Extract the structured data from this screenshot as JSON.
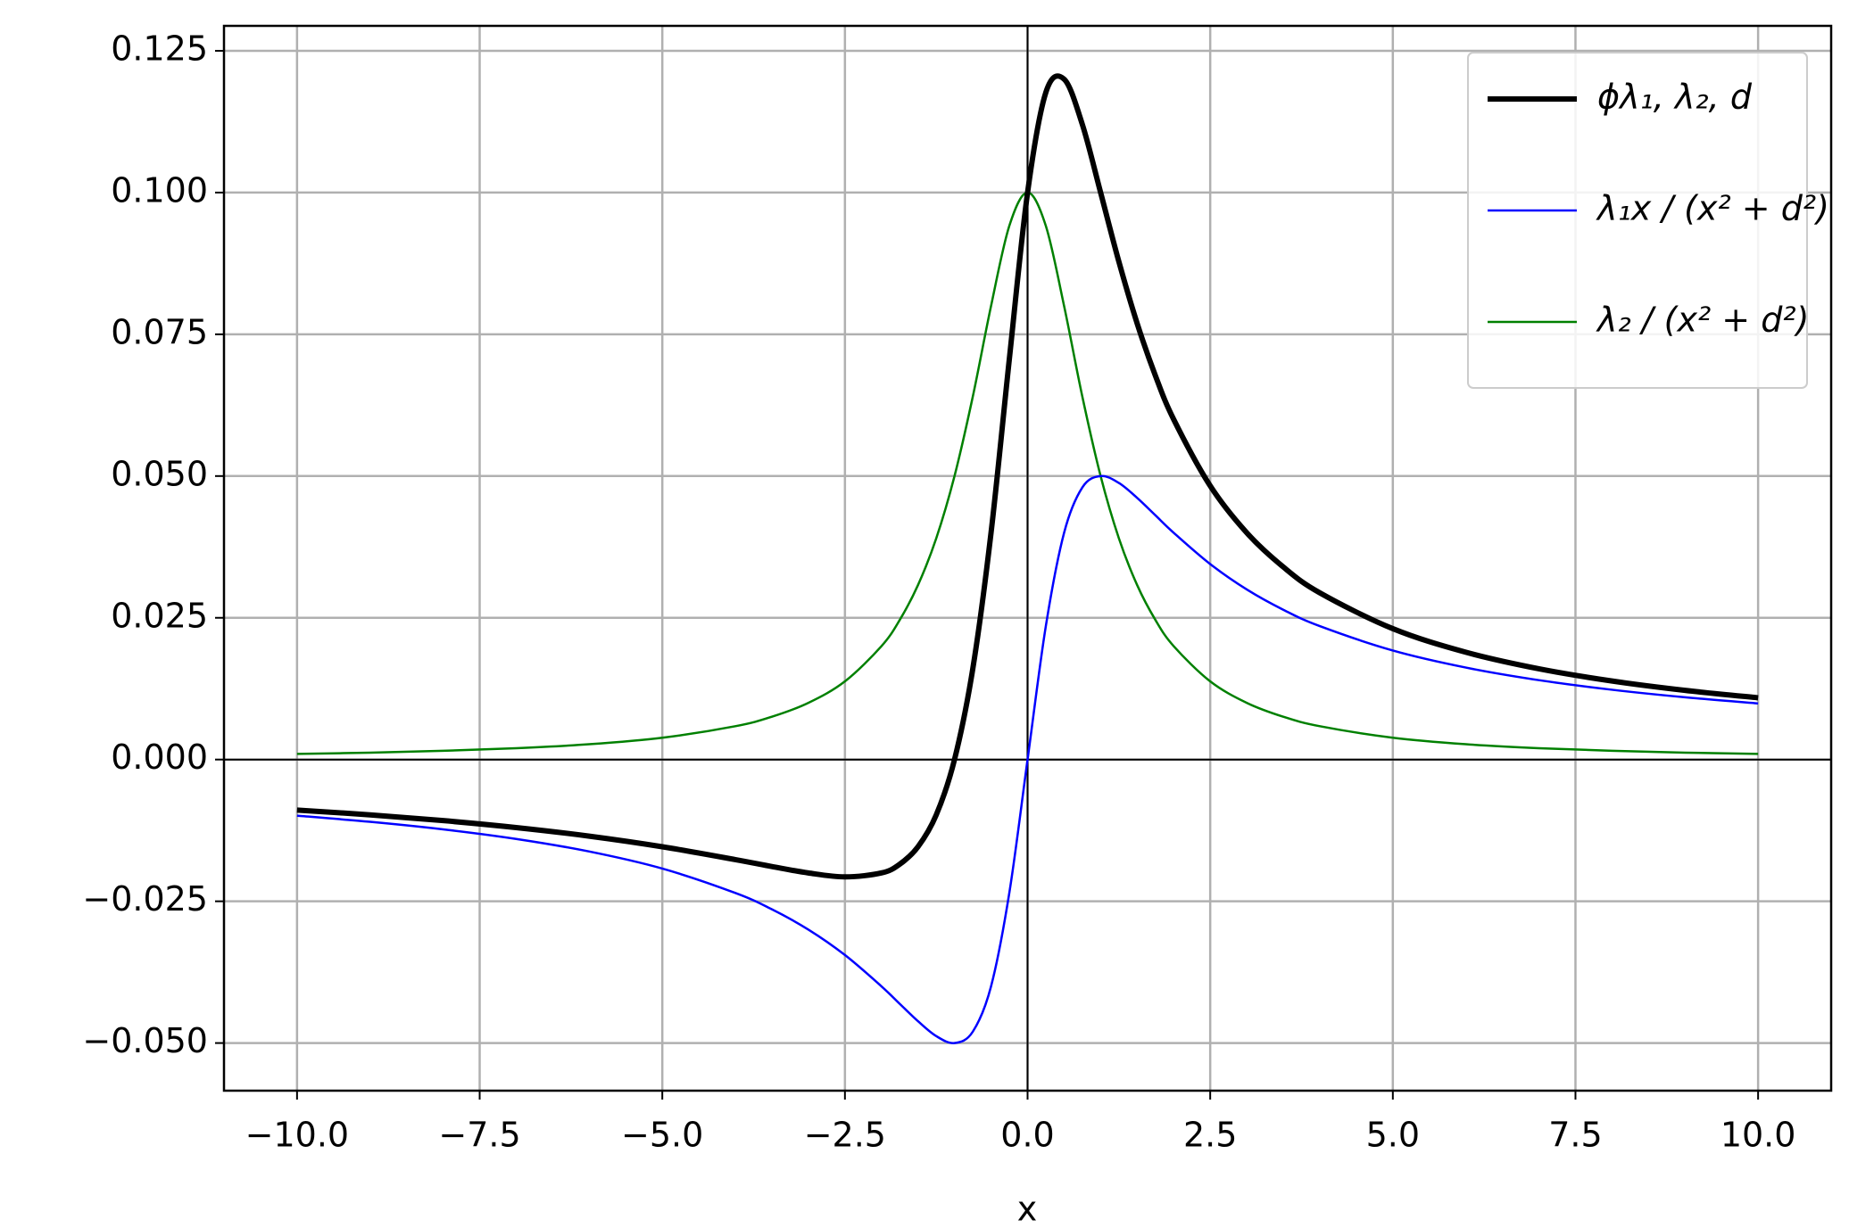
{
  "chart_data": {
    "type": "line",
    "x_label": "x",
    "x": [
      -10,
      -9,
      -8,
      -7,
      -6,
      -5,
      -4,
      -3.5,
      -3,
      -2.5,
      -2,
      -1.75,
      -1.5,
      -1.25,
      -1,
      -0.75,
      -0.5,
      -0.25,
      0,
      0.25,
      0.5,
      0.75,
      1,
      1.25,
      1.5,
      1.75,
      2,
      2.5,
      3,
      3.5,
      4,
      5,
      6,
      7,
      8,
      9,
      10
    ],
    "series": [
      {
        "name": "ϕλ₁, λ₂, d",
        "color": "#000000",
        "width": 6,
        "values": [
          -0.00891,
          -0.00976,
          -0.01077,
          -0.012,
          -0.01351,
          -0.01538,
          -0.01765,
          -0.01887,
          -0.02,
          -0.02069,
          -0.02,
          -0.01846,
          -0.01538,
          -0.00976,
          0,
          0.016,
          0.04,
          0.07059,
          0.1,
          0.11765,
          0.12,
          0.112,
          0.1,
          0.0878,
          0.07692,
          0.0677,
          0.06,
          0.04827,
          0.04,
          0.03397,
          0.02941,
          0.02308,
          0.01892,
          0.016,
          0.01385,
          0.0122,
          0.01089
        ]
      },
      {
        "name": "λ₁x / (x² + d²)",
        "color": "#0000ff",
        "width": 2.5,
        "values": [
          -0.0099,
          -0.01098,
          -0.01231,
          -0.014,
          -0.01622,
          -0.01923,
          -0.02353,
          -0.02642,
          -0.03,
          -0.03448,
          -0.04,
          -0.04308,
          -0.04615,
          -0.04878,
          -0.05,
          -0.048,
          -0.04,
          -0.02353,
          0,
          0.02353,
          0.04,
          0.048,
          0.05,
          0.04878,
          0.04615,
          0.04308,
          0.04,
          0.03448,
          0.03,
          0.02642,
          0.02353,
          0.01923,
          0.01622,
          0.014,
          0.01231,
          0.01098,
          0.0099
        ]
      },
      {
        "name": "λ₂ / (x² + d²)",
        "color": "#008000",
        "width": 2.5,
        "values": [
          0.00099,
          0.00122,
          0.00154,
          0.002,
          0.0027,
          0.00385,
          0.00588,
          0.00755,
          0.01,
          0.01379,
          0.02,
          0.02462,
          0.03077,
          0.03902,
          0.05,
          0.064,
          0.08,
          0.09412,
          0.1,
          0.09412,
          0.08,
          0.064,
          0.05,
          0.03902,
          0.03077,
          0.02462,
          0.02,
          0.01379,
          0.01,
          0.00755,
          0.00588,
          0.00385,
          0.0027,
          0.002,
          0.00154,
          0.00122,
          0.00099
        ]
      }
    ],
    "xlim": [
      -11,
      11
    ],
    "ylim": [
      -0.0584,
      0.1294
    ],
    "xticks": [
      {
        "value": -10,
        "label": "−10.0"
      },
      {
        "value": -7.5,
        "label": "−7.5"
      },
      {
        "value": -5,
        "label": "−5.0"
      },
      {
        "value": -2.5,
        "label": "−2.5"
      },
      {
        "value": 0,
        "label": "0.0"
      },
      {
        "value": 2.5,
        "label": "2.5"
      },
      {
        "value": 5,
        "label": "5.0"
      },
      {
        "value": 7.5,
        "label": "7.5"
      },
      {
        "value": 10,
        "label": "10.0"
      }
    ],
    "yticks": [
      {
        "value": -0.05,
        "label": "−0.050"
      },
      {
        "value": -0.025,
        "label": "−0.025"
      },
      {
        "value": 0,
        "label": "0.000"
      },
      0.025,
      {
        "value": 0.05,
        "label": "0.050"
      },
      0.075,
      {
        "value": 0.1,
        "label": "0.100"
      },
      0.125
    ],
    "grid": true,
    "zero_lines": true,
    "legend": "upper right"
  }
}
